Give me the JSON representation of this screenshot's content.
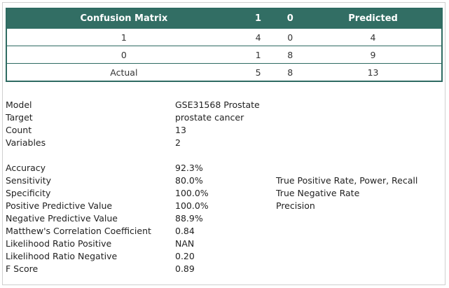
{
  "confusion_matrix": {
    "header": [
      "Confusion Matrix",
      "1",
      "0",
      "Predicted"
    ],
    "rows": [
      [
        "1",
        "4",
        "0",
        "4"
      ],
      [
        "0",
        "1",
        "8",
        "9"
      ],
      [
        "Actual",
        "5",
        "8",
        "13"
      ]
    ]
  },
  "model_info": [
    {
      "label": "Model",
      "value": "GSE31568 Prostate"
    },
    {
      "label": "Target",
      "value": "prostate cancer"
    },
    {
      "label": "Count",
      "value": "13"
    },
    {
      "label": "Variables",
      "value": "2"
    }
  ],
  "metrics": [
    {
      "label": "Accuracy",
      "value": "92.3%",
      "note": ""
    },
    {
      "label": "Sensitivity",
      "value": "80.0%",
      "note": "True Positive Rate, Power, Recall"
    },
    {
      "label": "Specificity",
      "value": "100.0%",
      "note": "True Negative Rate"
    },
    {
      "label": "Positive Predictive Value",
      "value": "100.0%",
      "note": "Precision"
    },
    {
      "label": "Negative Predictive Value",
      "value": "88.9%",
      "note": ""
    },
    {
      "label": "Matthew's Correlation Coefficient",
      "value": "0.84",
      "note": ""
    },
    {
      "label": "Likelihood Ratio Positive",
      "value": "NAN",
      "note": ""
    },
    {
      "label": "Likelihood Ratio Negative",
      "value": "0.20",
      "note": ""
    },
    {
      "label": "F Score",
      "value": "0.89",
      "note": ""
    }
  ],
  "colors": {
    "header_bg": "#326e64",
    "header_text": "#ffffff",
    "border": "#2e6b62"
  }
}
